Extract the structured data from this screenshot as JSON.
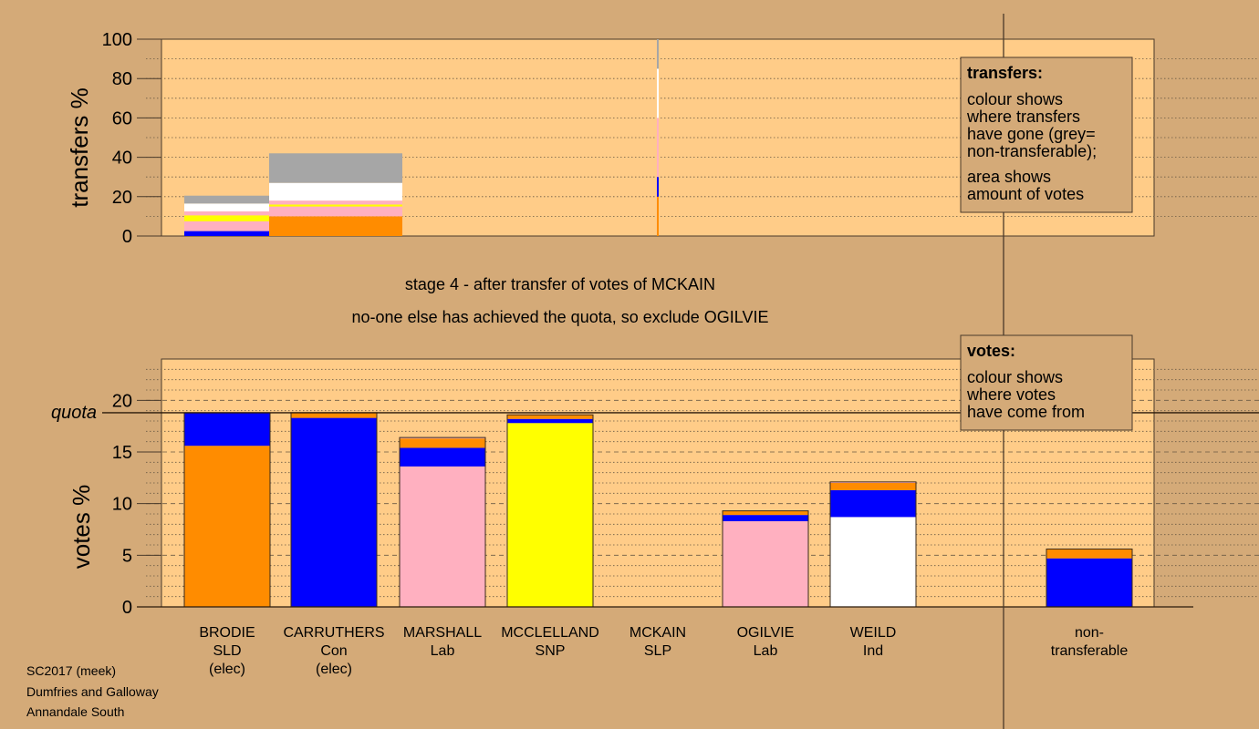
{
  "colors": {
    "page_bg": "#d4aa78",
    "plot_bg": "#ffcc88",
    "SLD": "#ff8c00",
    "Con": "#0000ff",
    "Lab": "#ffb0c0",
    "SNP": "#ffff00",
    "Ind": "#ffffff",
    "nontransferable": "#a6a6a6",
    "legend_bg": "#d4aa78"
  },
  "stage_text": {
    "line1": "stage 4 - after transfer of votes of MCKAIN",
    "line2": "no-one else has achieved the quota, so exclude OGILVIE"
  },
  "credits": {
    "line1": "SC2017 (meek)",
    "line2": "Dumfries and Galloway",
    "line3": "Annandale South"
  },
  "legends": {
    "transfers": {
      "title": "transfers:",
      "lines": [
        "colour shows",
        "where transfers",
        "have gone (grey=",
        "non-transferable);",
        "area shows",
        "amount of votes"
      ]
    },
    "votes": {
      "title": "votes:",
      "lines": [
        "colour shows",
        "where votes",
        "have come from"
      ]
    }
  },
  "candidates": [
    {
      "name": "BRODIE",
      "party": "SLD",
      "status": "(elec)"
    },
    {
      "name": "CARRUTHERS",
      "party": "Con",
      "status": "(elec)"
    },
    {
      "name": "MARSHALL",
      "party": "Lab",
      "status": ""
    },
    {
      "name": "MCCLELLAND",
      "party": "SNP",
      "status": ""
    },
    {
      "name": "MCKAIN",
      "party": "SLP",
      "status": ""
    },
    {
      "name": "OGILVIE",
      "party": "Lab",
      "status": ""
    },
    {
      "name": "WEILD",
      "party": "Ind",
      "status": ""
    },
    {
      "name": "non-",
      "party": "transferable",
      "status": ""
    }
  ],
  "chart_data": [
    {
      "type": "bar",
      "id": "transfers",
      "ylabel": "transfers %",
      "ylim": [
        0,
        100
      ],
      "yticks": [
        0,
        20,
        40,
        60,
        80,
        100
      ],
      "grid": "dotted every 10",
      "segments_note": "stacked colour segments showing where transferred votes went",
      "bars": [
        {
          "label": "transfer-1",
          "width_share": 0.39,
          "segments": [
            {
              "party": "Con",
              "from": 0,
              "to": 2.5
            },
            {
              "party": "Lab",
              "from": 2.5,
              "to": 7.5
            },
            {
              "party": "SNP",
              "from": 7.5,
              "to": 10.5
            },
            {
              "party": "Lab",
              "from": 10.5,
              "to": 12.5
            },
            {
              "party": "Ind",
              "from": 12.5,
              "to": 16.5
            },
            {
              "party": "nontransferable",
              "from": 16.5,
              "to": 20.5
            }
          ]
        },
        {
          "label": "transfer-2",
          "width_share": 0.61,
          "segments": [
            {
              "party": "SLD",
              "from": 0,
              "to": 10
            },
            {
              "party": "Lab",
              "from": 10,
              "to": 15
            },
            {
              "party": "SNP",
              "from": 15,
              "to": 16
            },
            {
              "party": "Lab",
              "from": 16,
              "to": 18
            },
            {
              "party": "Ind",
              "from": 18,
              "to": 27
            },
            {
              "party": "nontransferable",
              "from": 27,
              "to": 42
            }
          ]
        },
        {
          "label": "transfer-3",
          "width_share": 0.01,
          "segments": [
            {
              "party": "SLD",
              "from": 0,
              "to": 20
            },
            {
              "party": "Con",
              "from": 20,
              "to": 30
            },
            {
              "party": "Lab",
              "from": 30,
              "to": 60
            },
            {
              "party": "Ind",
              "from": 60,
              "to": 85
            },
            {
              "party": "nontransferable",
              "from": 85,
              "to": 100
            }
          ]
        }
      ]
    },
    {
      "type": "bar",
      "id": "votes",
      "ylabel": "votes %",
      "ylim": [
        0,
        24
      ],
      "yticks": [
        0,
        5,
        10,
        15,
        20
      ],
      "grid": "dashed every 5, dotted every 1",
      "quota": 18.8,
      "quota_label": "quota",
      "bars": [
        {
          "candidate": "BRODIE",
          "segments": [
            {
              "party": "SLD",
              "value": 15.6
            },
            {
              "party": "Con",
              "value": 3.2
            }
          ]
        },
        {
          "candidate": "CARRUTHERS",
          "segments": [
            {
              "party": "Con",
              "value": 18.3
            },
            {
              "party": "SLD",
              "value": 0.5
            }
          ]
        },
        {
          "candidate": "MARSHALL",
          "segments": [
            {
              "party": "Lab",
              "value": 13.6
            },
            {
              "party": "Con",
              "value": 1.8
            },
            {
              "party": "SLD",
              "value": 0.9
            },
            {
              "party": "Lab",
              "value": 0.1
            }
          ]
        },
        {
          "candidate": "MCCLELLAND",
          "segments": [
            {
              "party": "SNP",
              "value": 17.8
            },
            {
              "party": "Con",
              "value": 0.4
            },
            {
              "party": "SLD",
              "value": 0.4
            }
          ]
        },
        {
          "candidate": "MCKAIN",
          "segments": []
        },
        {
          "candidate": "OGILVIE",
          "segments": [
            {
              "party": "Lab",
              "value": 8.3
            },
            {
              "party": "Con",
              "value": 0.6
            },
            {
              "party": "SLD",
              "value": 0.4
            }
          ]
        },
        {
          "candidate": "WEILD",
          "segments": [
            {
              "party": "Ind",
              "value": 8.7
            },
            {
              "party": "Con",
              "value": 2.6
            },
            {
              "party": "SLD",
              "value": 0.7
            },
            {
              "party": "Lab",
              "value": 0.1
            }
          ]
        },
        {
          "candidate": "non-transferable",
          "segments": [
            {
              "party": "Con",
              "value": 4.7
            },
            {
              "party": "SLD",
              "value": 0.9
            }
          ]
        }
      ]
    }
  ]
}
